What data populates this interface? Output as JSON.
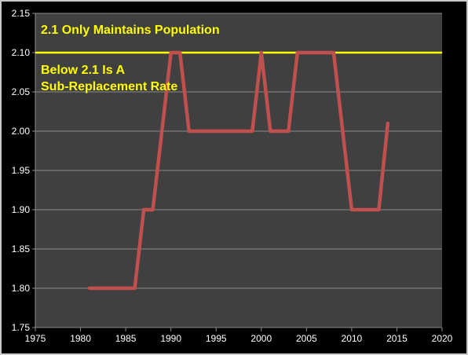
{
  "chart_data": {
    "type": "line",
    "title": "",
    "xlabel": "",
    "ylabel": "",
    "xlim": [
      1975,
      2020
    ],
    "ylim": [
      1.75,
      2.15
    ],
    "x_ticks": [
      1975,
      1980,
      1985,
      1990,
      1995,
      2000,
      2005,
      2010,
      2015,
      2020
    ],
    "y_ticks": [
      1.75,
      1.8,
      1.85,
      1.9,
      1.95,
      2.0,
      2.05,
      2.1,
      2.15
    ],
    "y_tick_labels": [
      "1.75",
      "1.80",
      "1.85",
      "1.90",
      "1.95",
      "2.00",
      "2.05",
      "2.10",
      "2.15"
    ],
    "x_tick_labels": [
      "1975",
      "1980",
      "1985",
      "1990",
      "1995",
      "2000",
      "2005",
      "2010",
      "2015",
      "2020"
    ],
    "grid": true,
    "legend": "none",
    "reference_line": {
      "y": 2.1,
      "color": "#ffff00"
    },
    "annotations": {
      "top": "2.1 Only Maintains Population",
      "below_line_1": "Below 2.1 Is A",
      "below_line_2": "Sub-Replacement Rate"
    },
    "colors": {
      "background": "#000000",
      "plot_area": "#404040",
      "grid": "#8a8a8a",
      "series": "#c0504d",
      "annotation_text": "#ffff00",
      "tick_text": "#ffffff"
    },
    "series": [
      {
        "x": [
          1981,
          1982,
          1983,
          1984,
          1985,
          1986,
          1987,
          1988,
          1989,
          1990,
          1991,
          1992,
          1993,
          1994,
          1995,
          1996,
          1997,
          1998,
          1999,
          2000,
          2001,
          2002,
          2003,
          2004,
          2005,
          2006,
          2007,
          2008,
          2009,
          2010,
          2011,
          2012,
          2013,
          2014
        ],
        "values": [
          1.8,
          1.8,
          1.8,
          1.8,
          1.8,
          1.8,
          1.9,
          1.9,
          2.0,
          2.1,
          2.1,
          2.0,
          2.0,
          2.0,
          2.0,
          2.0,
          2.0,
          2.0,
          2.0,
          2.1,
          2.0,
          2.0,
          2.0,
          2.1,
          2.1,
          2.1,
          2.1,
          2.1,
          2.0,
          1.9,
          1.9,
          1.9,
          1.9,
          2.01
        ]
      }
    ]
  }
}
